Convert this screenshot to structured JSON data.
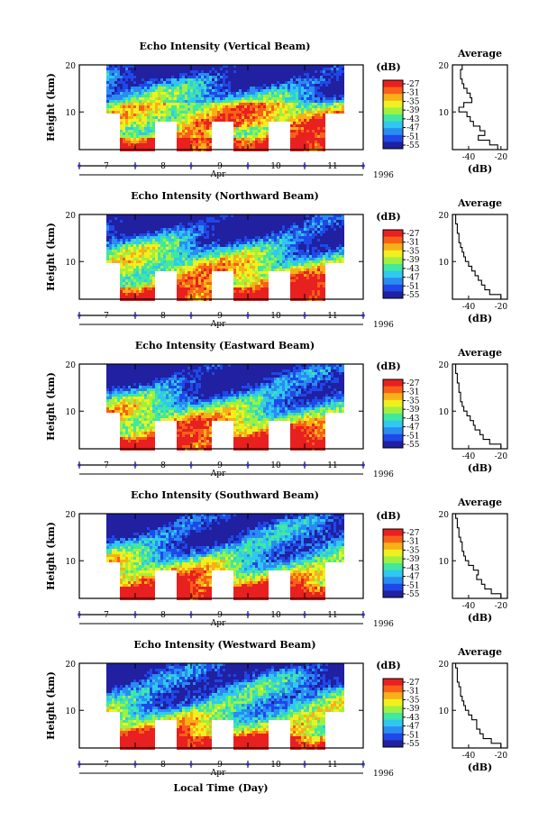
{
  "figure": {
    "xlabel": "Local Time (Day)",
    "month_label": "Apr",
    "year_label": "1996",
    "day_ticks": [
      "7",
      "8",
      "9",
      "10",
      "11"
    ],
    "height_ticks": [
      "20",
      "10"
    ],
    "ylabel": "Height (km)",
    "colorbar_unit": "(dB)",
    "colorbar_ticks": [
      "-27",
      "-31",
      "-35",
      "-39",
      "-43",
      "-47",
      "-51",
      "-55"
    ],
    "colorbar_colors": [
      "#2020a0",
      "#1f48e8",
      "#2a8cf0",
      "#30c8f0",
      "#40e8a0",
      "#a0f040",
      "#f0f020",
      "#f8b018",
      "#f86018",
      "#e82020"
    ],
    "average_title": "Average",
    "average_xlabel": "(dB)",
    "average_x_ticks": [
      "-40",
      "-20"
    ]
  },
  "chart_data": [
    {
      "type": "heatmap",
      "title": "Echo Intensity (Vertical Beam)",
      "ylabel": "Height (km)",
      "ylim": [
        2,
        20
      ],
      "xlabel": "Apr",
      "x_ticks": [
        "7",
        "8",
        "9",
        "10",
        "11"
      ],
      "colorbar": {
        "label": "(dB)",
        "range": [
          -55,
          -27
        ]
      },
      "average_profile": {
        "title": "Average",
        "xlabel": "(dB)",
        "xlim": [
          -50,
          -16
        ],
        "height_km": [
          2,
          3,
          4,
          5,
          6,
          7,
          8,
          9,
          10,
          11,
          12,
          13,
          14,
          15,
          16,
          17,
          18,
          19,
          20
        ],
        "db": [
          -22,
          -27,
          -34,
          -30,
          -33,
          -37,
          -39,
          -41,
          -46,
          -43,
          -38,
          -39,
          -41,
          -43,
          -44,
          -45,
          -45,
          -44,
          -45
        ]
      }
    },
    {
      "type": "heatmap",
      "title": "Echo Intensity (Northward Beam)",
      "ylabel": "Height (km)",
      "ylim": [
        2,
        20
      ],
      "xlabel": "Apr",
      "x_ticks": [
        "7",
        "8",
        "9",
        "10",
        "11"
      ],
      "colorbar": {
        "label": "(dB)",
        "range": [
          -55,
          -27
        ]
      },
      "average_profile": {
        "title": "Average",
        "xlabel": "(dB)",
        "xlim": [
          -50,
          -16
        ],
        "height_km": [
          2,
          3,
          4,
          5,
          6,
          7,
          8,
          9,
          10,
          11,
          12,
          13,
          14,
          15,
          16,
          17,
          18,
          19,
          20
        ],
        "db": [
          -20,
          -27,
          -30,
          -32,
          -34,
          -36,
          -38,
          -40,
          -42,
          -43,
          -44,
          -45,
          -46,
          -46,
          -47,
          -47,
          -48,
          -48,
          -48
        ]
      }
    },
    {
      "type": "heatmap",
      "title": "Echo Intensity (Eastward Beam)",
      "ylabel": "Height (km)",
      "ylim": [
        2,
        20
      ],
      "xlabel": "Apr",
      "x_ticks": [
        "7",
        "8",
        "9",
        "10",
        "11"
      ],
      "colorbar": {
        "label": "(dB)",
        "range": [
          -55,
          -27
        ]
      },
      "average_profile": {
        "title": "Average",
        "xlabel": "(dB)",
        "xlim": [
          -50,
          -16
        ],
        "height_km": [
          2,
          3,
          4,
          5,
          6,
          7,
          8,
          9,
          10,
          11,
          12,
          13,
          14,
          15,
          16,
          17,
          18,
          19,
          20
        ],
        "db": [
          -20,
          -27,
          -31,
          -33,
          -36,
          -37,
          -39,
          -41,
          -43,
          -44,
          -45,
          -45,
          -46,
          -46,
          -47,
          -47,
          -48,
          -48,
          -48
        ]
      }
    },
    {
      "type": "heatmap",
      "title": "Echo Intensity (Southward Beam)",
      "ylabel": "Height (km)",
      "ylim": [
        2,
        20
      ],
      "xlabel": "Apr",
      "x_ticks": [
        "7",
        "8",
        "9",
        "10",
        "11"
      ],
      "colorbar": {
        "label": "(dB)",
        "range": [
          -55,
          -27
        ]
      },
      "average_profile": {
        "title": "Average",
        "xlabel": "(dB)",
        "xlim": [
          -50,
          -16
        ],
        "height_km": [
          2,
          3,
          4,
          5,
          6,
          7,
          8,
          9,
          10,
          11,
          12,
          13,
          14,
          15,
          16,
          17,
          18,
          19,
          20
        ],
        "db": [
          -20,
          -26,
          -30,
          -32,
          -35,
          -34,
          -37,
          -40,
          -42,
          -43,
          -44,
          -44,
          -45,
          -46,
          -46,
          -47,
          -47,
          -48,
          -48
        ]
      }
    },
    {
      "type": "heatmap",
      "title": "Echo Intensity (Westward Beam)",
      "ylabel": "Height (km)",
      "ylim": [
        2,
        20
      ],
      "xlabel": "Apr",
      "x_ticks": [
        "7",
        "8",
        "9",
        "10",
        "11"
      ],
      "colorbar": {
        "label": "(dB)",
        "range": [
          -55,
          -27
        ]
      },
      "average_profile": {
        "title": "Average",
        "xlabel": "(dB)",
        "xlim": [
          -50,
          -16
        ],
        "height_km": [
          2,
          3,
          4,
          5,
          6,
          7,
          8,
          9,
          10,
          11,
          12,
          13,
          14,
          15,
          16,
          17,
          18,
          19,
          20
        ],
        "db": [
          -20,
          -26,
          -31,
          -33,
          -35,
          -35,
          -38,
          -40,
          -42,
          -43,
          -44,
          -45,
          -45,
          -46,
          -47,
          -47,
          -47,
          -48,
          -48
        ]
      }
    }
  ]
}
